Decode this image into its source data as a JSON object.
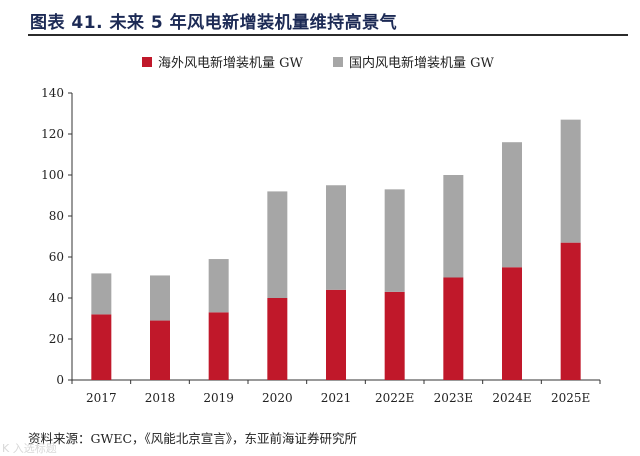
{
  "title": "图表 41. 未来 5 年风电新增装机量维持高景气",
  "legend": [
    {
      "label": "海外风电新增装机量 GW",
      "color": "#c0182a"
    },
    {
      "label": "国内风电新增装机量 GW",
      "color": "#a6a6a6"
    }
  ],
  "source": "资料来源：GWEC，《风能北京宣言》，东亚前海证券研究所",
  "watermark": "K  入选标题",
  "chart_data": {
    "type": "bar",
    "stacked": true,
    "categories": [
      "2017",
      "2018",
      "2019",
      "2020",
      "2021",
      "2022E",
      "2023E",
      "2024E",
      "2025E"
    ],
    "series": [
      {
        "name": "海外风电新增装机量 GW",
        "color": "#c0182a",
        "values": [
          32,
          29,
          33,
          40,
          44,
          43,
          50,
          55,
          67
        ]
      },
      {
        "name": "国内风电新增装机量 GW",
        "color": "#a6a6a6",
        "values": [
          20,
          22,
          26,
          52,
          51,
          50,
          50,
          61,
          60
        ]
      }
    ],
    "yticks": [
      0,
      20,
      40,
      60,
      80,
      100,
      120,
      140
    ],
    "ylim": [
      0,
      140
    ],
    "grid": false,
    "legend_position": "top"
  }
}
